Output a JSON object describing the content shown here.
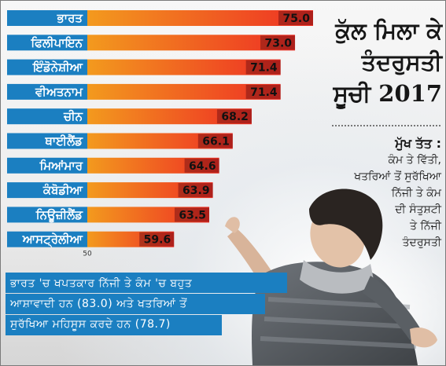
{
  "chart_data": {
    "type": "bar",
    "orientation": "horizontal",
    "categories": [
      "ਭਾਰਤ",
      "ਫਿਲੀਪਾਇਨ",
      "ਇੰਡੋਨੇਸ਼ੀਆ",
      "ਵੀਅਤਨਾਮ",
      "ਚੀਨ",
      "ਥਾਈਲੈਂਡ",
      "ਮਿਆਂਮਾਰ",
      "ਕੰਬੋਡੀਆ",
      "ਨਿਊਜ਼ੀਲੈਂਡ",
      "ਆਸਟ੍ਰੇਲੀਆ"
    ],
    "values": [
      75.0,
      73.0,
      71.4,
      71.4,
      68.2,
      66.1,
      64.6,
      63.9,
      63.5,
      59.6
    ],
    "value_labels": [
      "75.0",
      "73.0",
      "71.4",
      "71.4",
      "68.2",
      "66.1",
      "64.6",
      "63.9",
      "63.5",
      "59.6"
    ],
    "axis_min_label": "50",
    "xlim": [
      50,
      75
    ],
    "grid": false,
    "bar_gradient": [
      "#f39a1e",
      "#ee2f24"
    ],
    "value_box_color": "#7a1414"
  },
  "title": {
    "lines": [
      "ਕੁੱਲ ਮਿਲਾ ਕੇ",
      "ਤੰਦਰੁਸਤੀ",
      "ਸੂਚੀ 2017"
    ]
  },
  "facts": {
    "heading": "ਮੁੱਖ ਤੱਤ :",
    "lines": [
      "ਕੰਮ ਤੇ ਵਿੱਤੀ,",
      "ਖਤਰਿਆਂ ਤੋਂ ਸੁਰੱਖਿਆ",
      "ਨਿੱਜੀ ਤੇ ਕੰਮ",
      "ਦੀ ਸੰਤੁਸ਼ਟੀ",
      "ਤੇ ਨਿੱਜੀ",
      "ਤੰਦਰੁਸਤੀ"
    ]
  },
  "note": {
    "lines": [
      "ਭਾਰਤ 'ਚ ਖਪਤਕਾਰ ਨਿੱਜੀ ਤੇ ਕੰਮ 'ਚ ਬਹੁਤ",
      "ਆਸ਼ਾਵਾਦੀ ਹਨ (83.0) ਅਤੇ ਖਤਰਿਆਂ ਤੋਂ",
      "ਸੁਰੱਖਿਆ ਮਹਿਸੂਸ ਕਰਦੇ ਹਨ (78.7)"
    ]
  },
  "colors": {
    "label_box": "#1b7fc1",
    "note_box": "#1b7fc1"
  }
}
